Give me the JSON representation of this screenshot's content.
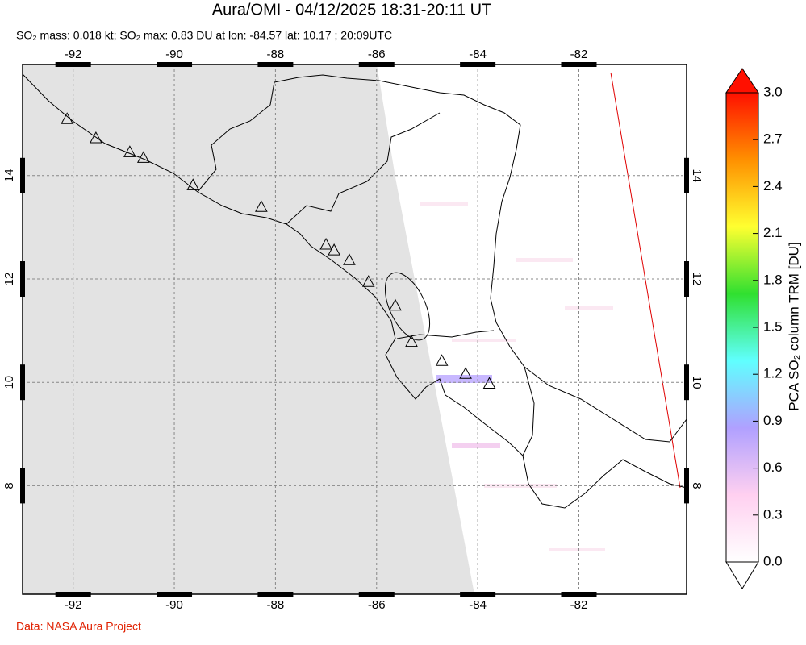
{
  "title": "Aura/OMI - 04/12/2025 18:31-20:11 UT",
  "subtitle": "SO₂ mass: 0.018 kt; SO₂ max: 0.83 DU at lon: -84.57 lat: 10.17 ; 20:09UTC",
  "footer": "Data: NASA Aura Project",
  "map": {
    "xlim": [
      -93,
      -79.87
    ],
    "ylim": [
      5.9,
      16.15
    ],
    "xticks": [
      -92,
      -90,
      -88,
      -86,
      -84,
      -82
    ],
    "yticks": [
      8,
      10,
      12,
      14
    ],
    "volcanoes": {
      "lon": [
        -92.12,
        -91.55,
        -90.88,
        -90.61,
        -89.63,
        -88.28,
        -87.0,
        -86.84,
        -86.54,
        -86.16,
        -85.63,
        -85.31,
        -84.71,
        -84.24,
        -83.77
      ],
      "lat": [
        15.1,
        14.73,
        14.46,
        14.35,
        13.82,
        13.4,
        12.67,
        12.56,
        12.37,
        11.95,
        11.49,
        10.79,
        10.42,
        10.17,
        9.98
      ]
    }
  },
  "colorbar": {
    "label": "PCA SO₂ column TRM [DU]",
    "lim": [
      0,
      3
    ],
    "ticks": [
      {
        "value": 0,
        "label": "0.0"
      },
      0.3,
      0.6,
      0.9,
      1.2,
      1.5,
      1.8,
      2.1,
      2.4,
      2.7,
      {
        "value": 3,
        "label": "3.0"
      }
    ],
    "colors": [
      "#ffffff",
      "#ffd0f0",
      "#b0a0ff",
      "#60ffff",
      "#30e030",
      "#ffff30",
      "#ff9000",
      "#ff1000"
    ]
  }
}
